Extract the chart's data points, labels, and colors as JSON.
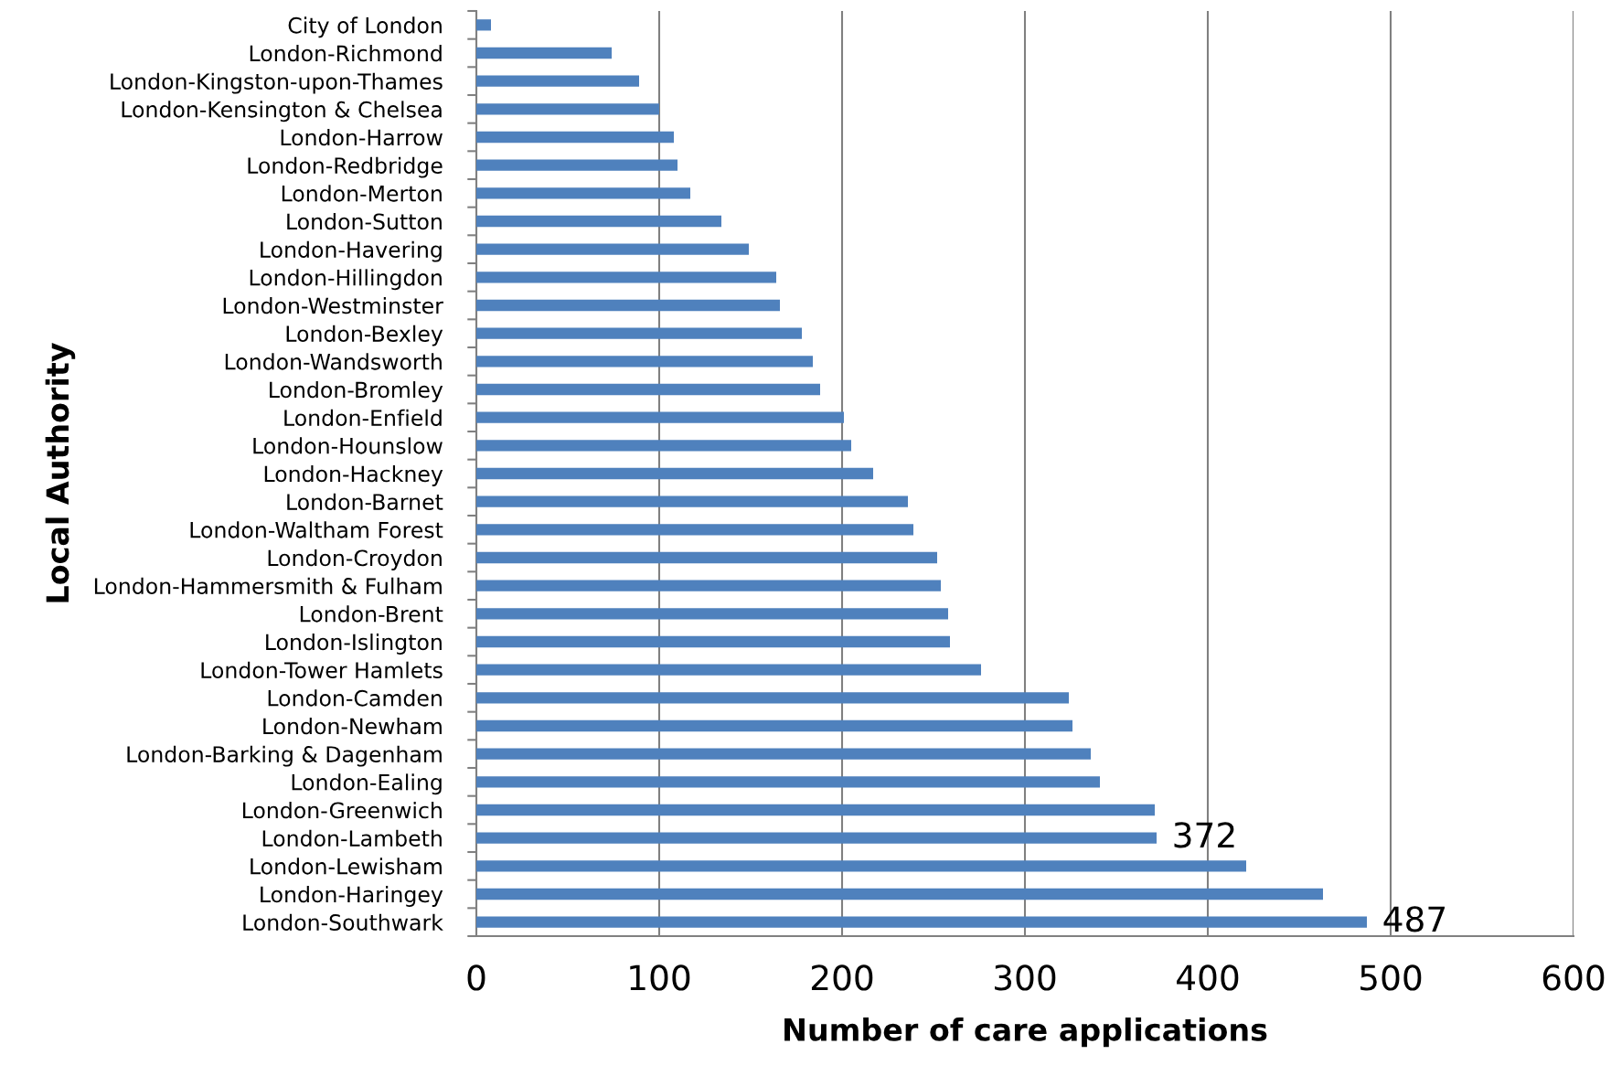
{
  "chart_data": {
    "type": "bar",
    "orientation": "horizontal",
    "xlabel": "Number of care applications",
    "ylabel": "Local Authority",
    "categories": [
      "City of London",
      "London-Richmond",
      "London-Kingston-upon-Thames",
      "London-Kensington & Chelsea",
      "London-Harrow",
      "London-Redbridge",
      "London-Merton",
      "London-Sutton",
      "London-Havering",
      "London-Hillingdon",
      "London-Westminster",
      "London-Bexley",
      "London-Wandsworth",
      "London-Bromley",
      "London-Enfield",
      "London-Hounslow",
      "London-Hackney",
      "London-Barnet",
      "London-Waltham Forest",
      "London-Croydon",
      "London-Hammersmith & Fulham",
      "London-Brent",
      "London-Islington",
      "London-Tower Hamlets",
      "London-Camden",
      "London-Newham",
      "London-Barking & Dagenham",
      "London-Ealing",
      "London-Greenwich",
      "London-Lambeth",
      "London-Lewisham",
      "London-Haringey",
      "London-Southwark"
    ],
    "values": [
      8,
      74,
      89,
      100,
      108,
      110,
      117,
      134,
      149,
      164,
      166,
      178,
      184,
      188,
      201,
      205,
      217,
      236,
      239,
      252,
      254,
      258,
      259,
      276,
      324,
      326,
      336,
      341,
      371,
      372,
      421,
      463,
      487
    ],
    "value_labels": [
      null,
      null,
      null,
      null,
      null,
      null,
      null,
      null,
      null,
      null,
      null,
      null,
      null,
      null,
      null,
      null,
      null,
      null,
      null,
      null,
      null,
      null,
      null,
      null,
      null,
      null,
      null,
      null,
      null,
      "372",
      null,
      null,
      "487"
    ],
    "color": "#4f81bd",
    "xlim": [
      0,
      600
    ],
    "xticks": [
      0,
      100,
      200,
      300,
      400,
      500,
      600
    ],
    "grid": "x"
  }
}
